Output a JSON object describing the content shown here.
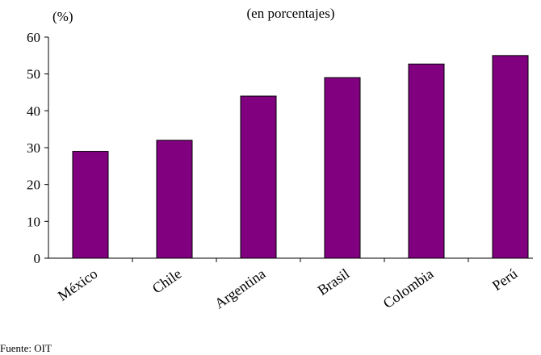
{
  "chart_data": {
    "type": "bar",
    "subtitle": "(en porcentajes)",
    "y_label": "(%)",
    "source": "Fuente: OIT",
    "categories": [
      "México",
      "Chile",
      "Argentina",
      "Brasil",
      "Colombia",
      "Perú"
    ],
    "values": [
      29,
      32,
      44,
      49,
      52.7,
      55
    ],
    "color": "#800080",
    "ylim": [
      0,
      60
    ],
    "yticks": [
      0,
      10,
      20,
      30,
      40,
      50,
      60
    ],
    "grid": false
  }
}
